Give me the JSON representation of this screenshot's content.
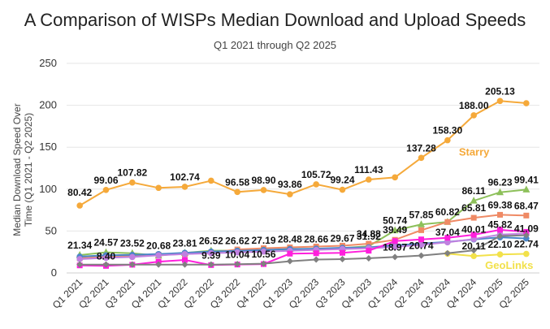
{
  "chart_data": {
    "type": "line",
    "title": "A Comparison of WISPs Median Download and Upload Speeds",
    "subtitle": "Q1 2021 through Q2 2025",
    "ylabel": "Median Download Speed Over Time (Q1 2021 - Q2 2025)",
    "xlabel": "",
    "ylim": [
      0,
      250
    ],
    "yticks": [
      "0",
      "50",
      "100",
      "150",
      "200",
      "250"
    ],
    "categories": [
      "Q1 2021",
      "Q2 2021",
      "Q3 2021",
      "Q4 2021",
      "Q1 2022",
      "Q2 2022",
      "Q3 2022",
      "Q4 2022",
      "Q1 2023",
      "Q2 2023",
      "Q3 2023",
      "Q4 2023",
      "Q1 2024",
      "Q2 2024",
      "Q3 2024",
      "Q4 2024",
      "Q1 2025",
      "Q2 2025"
    ],
    "grid": true,
    "series": [
      {
        "name": "Starry",
        "color": "#f5a93a",
        "marker": "circle",
        "values": [
          80.42,
          99.06,
          107.82,
          101.5,
          102.74,
          110.0,
          96.58,
          98.9,
          93.86,
          105.72,
          99.24,
          111.43,
          114.0,
          137.28,
          158.3,
          188.0,
          205.13,
          202.5
        ],
        "labels": [
          "80.42",
          "99.06",
          "107.82",
          "",
          "102.74",
          "",
          "96.58",
          "98.90",
          "93.86",
          "105.72",
          "99.24",
          "111.43",
          "",
          "137.28",
          "158.30",
          "188.00",
          "205.13",
          ""
        ]
      },
      {
        "name": "",
        "color": "#8dc05a",
        "marker": "triangle",
        "values": [
          21.34,
          24.57,
          23.52,
          20.68,
          23.81,
          26.52,
          26.62,
          27.19,
          28.48,
          28.66,
          29.67,
          31.92,
          50.74,
          57.85,
          60.82,
          86.11,
          96.23,
          99.41
        ],
        "labels": [
          "21.34",
          "24.57",
          "23.52",
          "20.68",
          "23.81",
          "26.52",
          "26.62",
          "27.19",
          "28.48",
          "28.66",
          "29.67",
          "31.92",
          "50.74",
          "57.85",
          "",
          "86.11",
          "96.23",
          "99.41"
        ]
      },
      {
        "name": "",
        "color": "#ef8a65",
        "marker": "square",
        "values": [
          17.5,
          19.5,
          20.5,
          21.5,
          22.5,
          24.5,
          28.0,
          29.5,
          30.5,
          31.5,
          32.5,
          34.88,
          39.49,
          51.0,
          60.82,
          65.81,
          69.38,
          68.47
        ],
        "labels": [
          "",
          "",
          "",
          "",
          "",
          "",
          "",
          "",
          "",
          "",
          "",
          "34.88",
          "39.49",
          "",
          "60.82",
          "65.81",
          "69.38",
          "68.47"
        ]
      },
      {
        "name": "",
        "color": "#4a86c8",
        "marker": "circle",
        "values": [
          19.5,
          21.0,
          21.5,
          22.5,
          24.0,
          25.5,
          26.5,
          27.5,
          28.5,
          29.0,
          30.0,
          30.5,
          33.0,
          35.0,
          37.04,
          40.01,
          42.5,
          41.09
        ],
        "labels": [
          "",
          "",
          "",
          "",
          "",
          "",
          "",
          "",
          "",
          "",
          "",
          "",
          "",
          "",
          "37.04",
          "40.01",
          "",
          "41.09"
        ]
      },
      {
        "name": "",
        "color": "#c080e0",
        "marker": "circle",
        "values": [
          16.5,
          18.0,
          19.0,
          21.0,
          22.5,
          23.5,
          24.5,
          25.5,
          26.5,
          27.5,
          28.5,
          29.5,
          31.0,
          33.5,
          36.5,
          40.5,
          45.82,
          47.0
        ],
        "labels": [
          "",
          "",
          "",
          "",
          "",
          "",
          "",
          "",
          "",
          "",
          "",
          "",
          "",
          "",
          "",
          "",
          "45.82",
          ""
        ]
      },
      {
        "name": "",
        "color": "#ff1fdc",
        "marker": "square",
        "values": [
          9.0,
          8.4,
          9.8,
          13.5,
          15.5,
          9.39,
          10.04,
          10.56,
          23.0,
          23.5,
          24.0,
          26.5,
          38.0,
          40.0,
          42.0,
          45.5,
          51.5,
          49.0
        ],
        "labels": [
          "",
          "8.40",
          "",
          "",
          "",
          "9.39",
          "10.04",
          "10.56",
          "",
          "",
          "",
          "",
          "",
          "",
          "",
          "",
          "",
          ""
        ]
      },
      {
        "name": "GeoLinks",
        "color": "#f2e14a",
        "marker": "circle",
        "values": [
          null,
          null,
          null,
          null,
          null,
          null,
          null,
          null,
          null,
          null,
          null,
          null,
          null,
          null,
          23.0,
          20.11,
          22.1,
          22.74
        ],
        "labels": [
          "",
          "",
          "",
          "",
          "",
          "",
          "",
          "",
          "",
          "",
          "",
          "",
          "",
          "",
          "",
          "20.11",
          "22.10",
          "22.74"
        ]
      },
      {
        "name": "",
        "color": "#808080",
        "marker": "diamond",
        "values": [
          10.0,
          10.0,
          10.0,
          10.0,
          10.0,
          10.0,
          10.5,
          11.0,
          14.0,
          16.0,
          16.5,
          17.5,
          18.97,
          20.74,
          23.5,
          27.0,
          44.0,
          45.0
        ],
        "labels": [
          "",
          "",
          "",
          "",
          "",
          "",
          "",
          "",
          "",
          "",
          "",
          "",
          "18.97",
          "20.74",
          "",
          "",
          "",
          ""
        ]
      }
    ],
    "series_text_labels": [
      {
        "text": "Starry",
        "color": "#f5a93a"
      },
      {
        "text": "GeoLinks",
        "color": "#f2e14a"
      }
    ]
  }
}
